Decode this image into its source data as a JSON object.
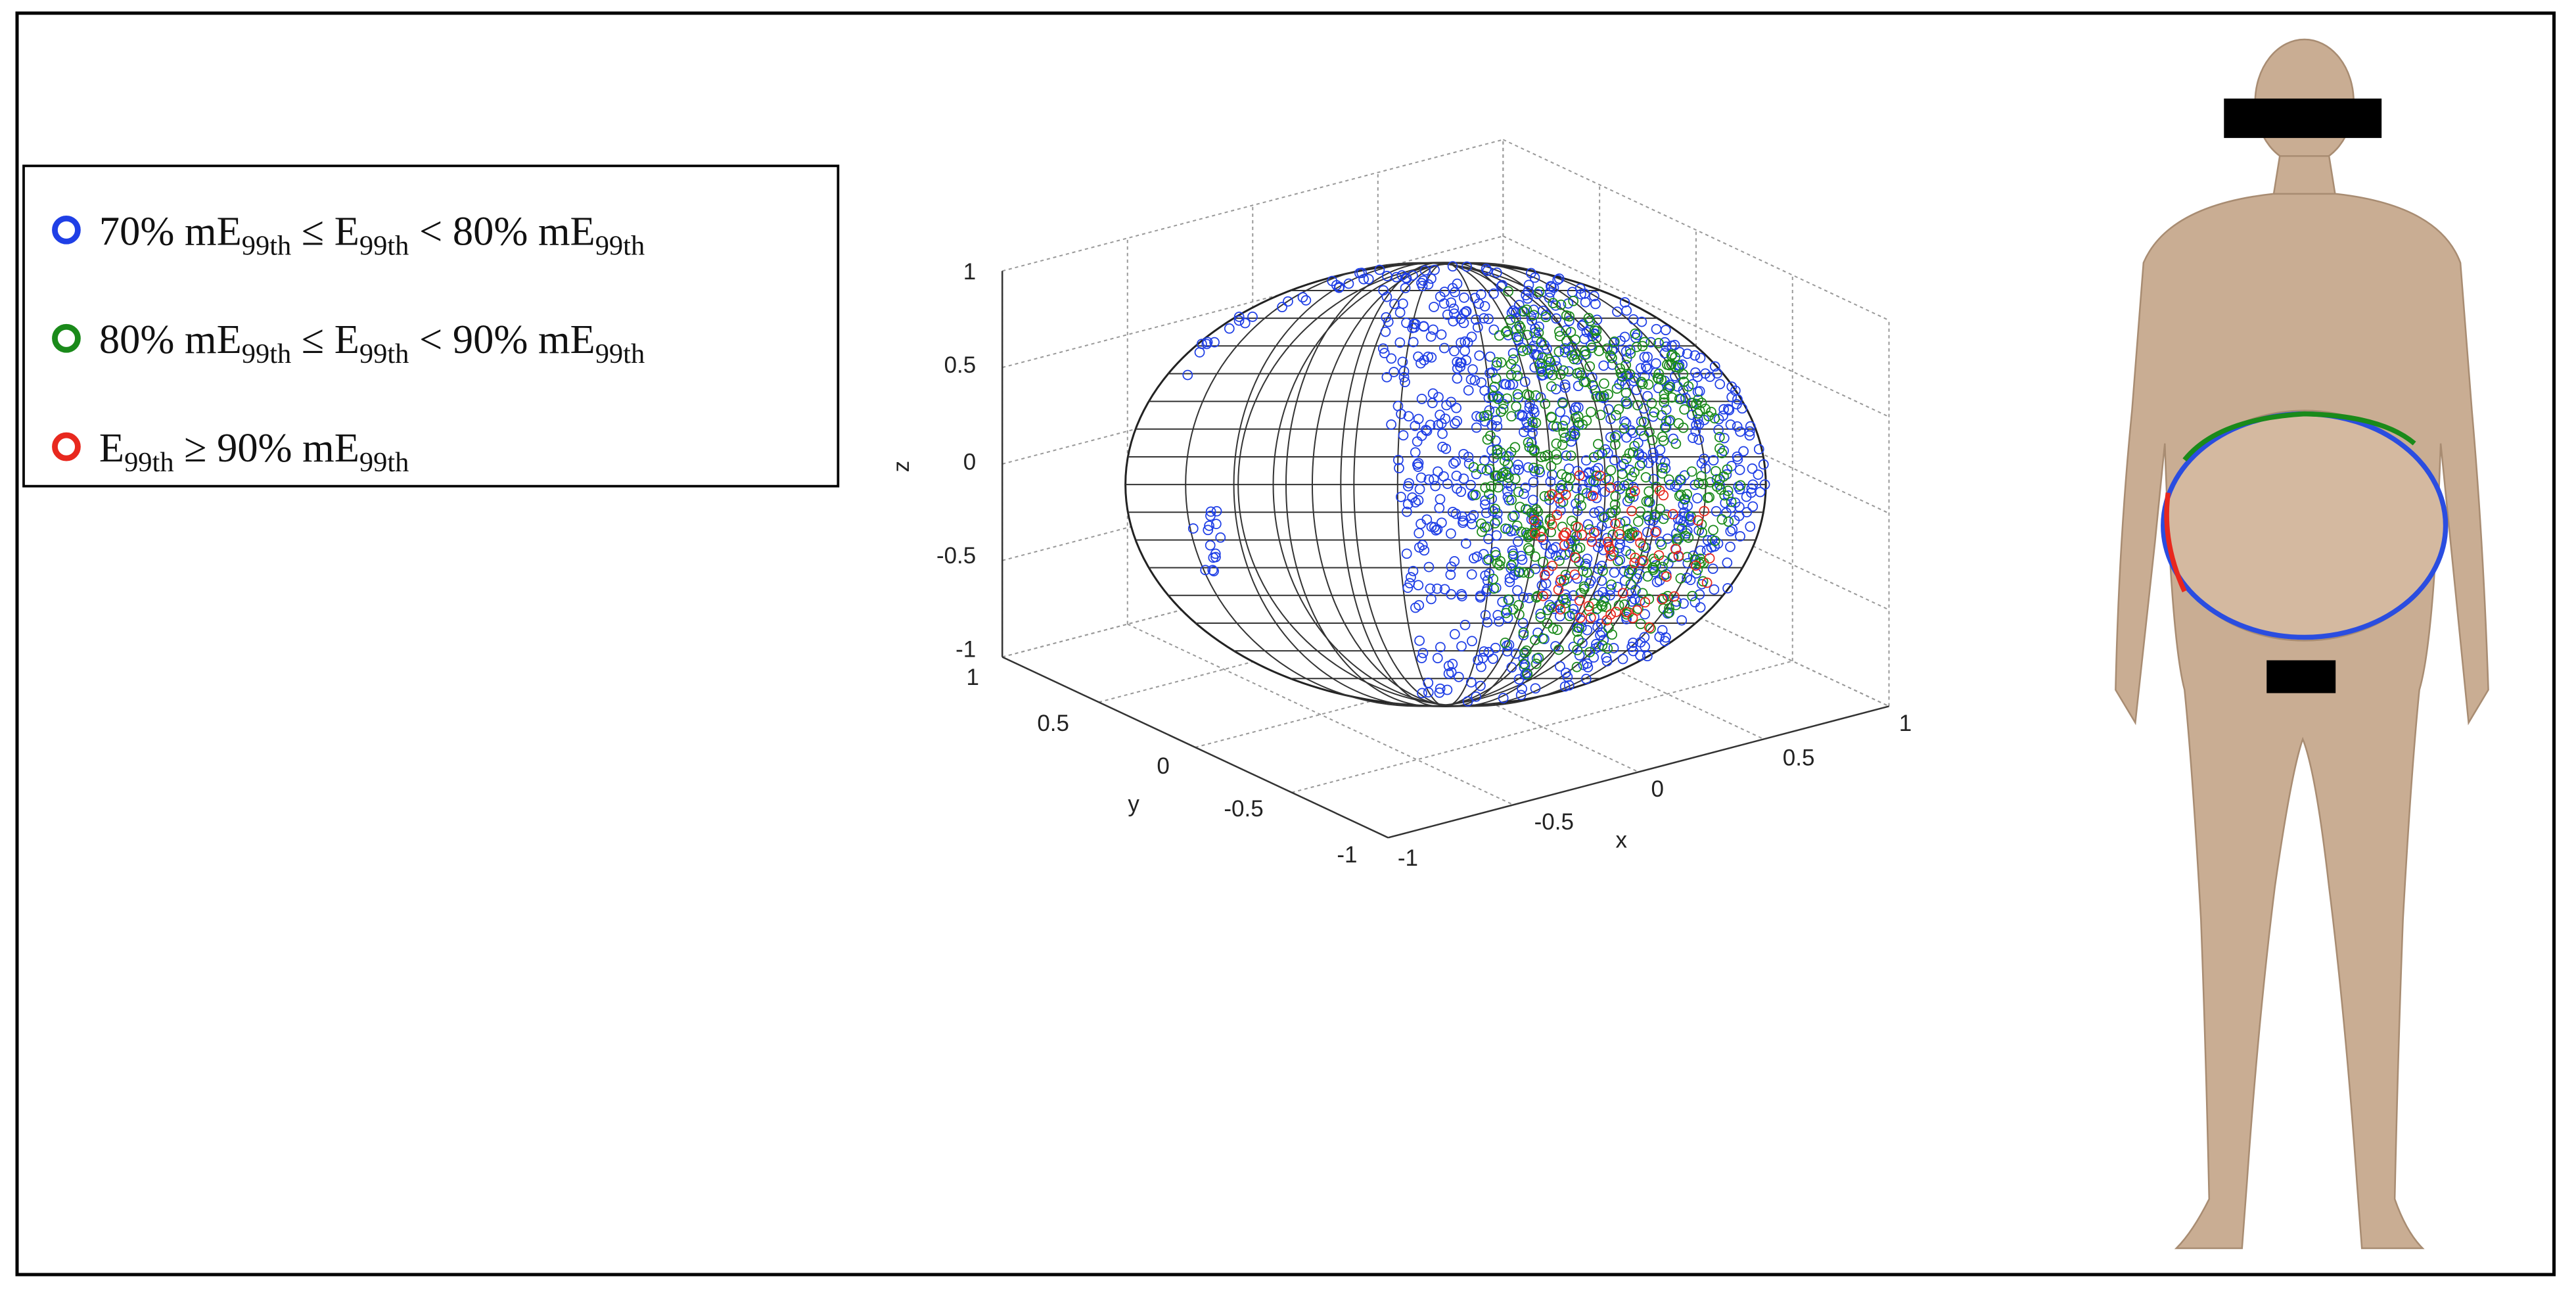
{
  "figure": {
    "legend": [
      {
        "marker_color": "#1f3fe6",
        "parts": [
          "70% mE",
          "99th",
          " ≤ E",
          "99th",
          " < 80% mE",
          "99th"
        ]
      },
      {
        "marker_color": "#1a8a1a",
        "parts": [
          "80% mE",
          "99th",
          " ≤ E",
          "99th",
          " < 90% mE",
          "99th"
        ]
      },
      {
        "marker_color": "#e8281e",
        "parts": [
          "E",
          "99th",
          " ≥ 90% mE",
          "99th"
        ]
      }
    ],
    "axes": {
      "x_label": "x",
      "y_label": "y",
      "z_label": "z",
      "x_ticks": [
        "-1",
        "-0.5",
        "0",
        "0.5",
        "1"
      ],
      "y_ticks": [
        "1",
        "0.5",
        "0",
        "-0.5",
        "-1"
      ],
      "z_ticks": [
        "1",
        "0.5",
        "0",
        "-0.5",
        "-1"
      ]
    }
  }
}
